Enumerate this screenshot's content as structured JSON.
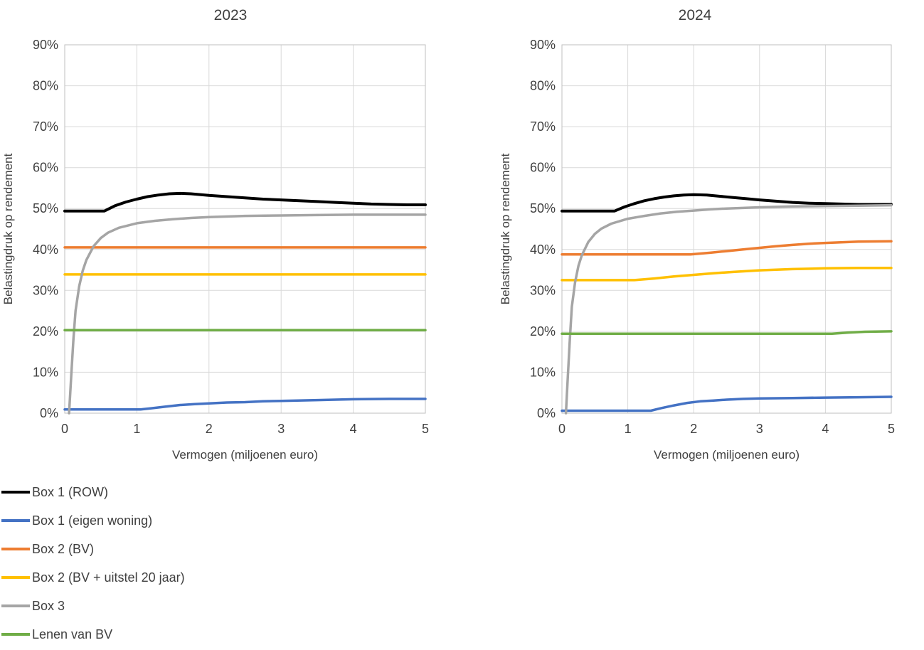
{
  "page": {
    "background": "#ffffff",
    "text_color": "#404040",
    "gridline_color": "#d9d9d9",
    "plot_border_color": "#bfbfbf"
  },
  "chart_data": [
    {
      "type": "line",
      "title": "2023",
      "xlabel": "Vermogen (miljoenen euro)",
      "ylabel": "Belastingdruk op rendement",
      "xlim": [
        0,
        5
      ],
      "ylim": [
        0,
        90
      ],
      "x_ticks": [
        "0",
        "1",
        "2",
        "3",
        "4",
        "5"
      ],
      "y_ticks": [
        "0%",
        "10%",
        "20%",
        "30%",
        "40%",
        "50%",
        "60%",
        "70%",
        "80%",
        "90%"
      ],
      "grid": true,
      "series": [
        {
          "name": "Box 1 (ROW)",
          "color": "#000000",
          "x": [
            0,
            0.55,
            0.7,
            0.85,
            1.0,
            1.15,
            1.3,
            1.45,
            1.6,
            1.75,
            2.0,
            2.25,
            2.5,
            2.75,
            3.0,
            3.25,
            3.5,
            3.75,
            4.0,
            4.25,
            4.5,
            4.75,
            5.0
          ],
          "y": [
            49.4,
            49.4,
            50.7,
            51.6,
            52.3,
            52.9,
            53.3,
            53.6,
            53.7,
            53.6,
            53.2,
            52.9,
            52.6,
            52.3,
            52.1,
            51.9,
            51.7,
            51.5,
            51.3,
            51.1,
            51.0,
            50.9,
            50.9
          ]
        },
        {
          "name": "Box 1 (eigen woning)",
          "color": "#4472C4",
          "x": [
            0,
            1.05,
            1.2,
            1.4,
            1.6,
            1.8,
            2.0,
            2.25,
            2.5,
            2.75,
            3.0,
            3.5,
            4.0,
            4.5,
            5.0
          ],
          "y": [
            0.9,
            0.9,
            1.2,
            1.6,
            2.0,
            2.2,
            2.4,
            2.6,
            2.7,
            2.9,
            3.0,
            3.2,
            3.4,
            3.5,
            3.5
          ]
        },
        {
          "name": "Box 2 (BV)",
          "color": "#ED7D31",
          "x": [
            0,
            5
          ],
          "y": [
            40.5,
            40.5
          ]
        },
        {
          "name": "Box 2 (BV + uitstel 20 jaar)",
          "color": "#FFC000",
          "x": [
            0,
            5
          ],
          "y": [
            33.9,
            33.9
          ]
        },
        {
          "name": "Box 3",
          "color": "#A5A5A5",
          "x": [
            0.06,
            0.09,
            0.12,
            0.15,
            0.2,
            0.25,
            0.3,
            0.4,
            0.5,
            0.6,
            0.75,
            1.0,
            1.25,
            1.5,
            1.75,
            2.0,
            2.5,
            3.0,
            3.5,
            4.0,
            4.5,
            5.0
          ],
          "y": [
            0,
            9,
            18,
            25,
            31,
            34.8,
            37.4,
            40.8,
            42.8,
            44.1,
            45.3,
            46.4,
            47.0,
            47.4,
            47.7,
            47.9,
            48.2,
            48.3,
            48.4,
            48.5,
            48.5,
            48.5
          ]
        },
        {
          "name": "Lenen van BV",
          "color": "#70AD47",
          "x": [
            0,
            5
          ],
          "y": [
            20.3,
            20.3
          ]
        }
      ]
    },
    {
      "type": "line",
      "title": "2024",
      "xlabel": "Vermogen (miljoenen euro)",
      "ylabel": "Belastingdruk op rendement",
      "xlim": [
        0,
        5
      ],
      "ylim": [
        0,
        90
      ],
      "x_ticks": [
        "0",
        "1",
        "2",
        "3",
        "4",
        "5"
      ],
      "y_ticks": [
        "0%",
        "10%",
        "20%",
        "30%",
        "40%",
        "50%",
        "60%",
        "70%",
        "80%",
        "90%"
      ],
      "grid": true,
      "series": [
        {
          "name": "Box 1 (ROW)",
          "color": "#000000",
          "x": [
            0,
            0.8,
            0.95,
            1.1,
            1.25,
            1.4,
            1.55,
            1.7,
            1.85,
            2.0,
            2.2,
            2.4,
            2.6,
            2.8,
            3.0,
            3.25,
            3.5,
            3.75,
            4.0,
            4.25,
            4.5,
            5.0
          ],
          "y": [
            49.4,
            49.4,
            50.4,
            51.2,
            51.9,
            52.4,
            52.8,
            53.1,
            53.3,
            53.4,
            53.3,
            53.0,
            52.7,
            52.4,
            52.1,
            51.8,
            51.5,
            51.3,
            51.2,
            51.1,
            51.0,
            51.0
          ]
        },
        {
          "name": "Box 1 (eigen woning)",
          "color": "#4472C4",
          "x": [
            0,
            1.35,
            1.5,
            1.7,
            1.9,
            2.1,
            2.3,
            2.5,
            2.75,
            3.0,
            3.5,
            4.0,
            4.5,
            5.0
          ],
          "y": [
            0.6,
            0.6,
            1.2,
            1.9,
            2.5,
            2.9,
            3.1,
            3.3,
            3.5,
            3.6,
            3.7,
            3.8,
            3.9,
            4.0
          ]
        },
        {
          "name": "Box 2 (BV)",
          "color": "#ED7D31",
          "x": [
            0,
            1.95,
            2.25,
            2.5,
            2.75,
            3.0,
            3.25,
            3.5,
            3.75,
            4.0,
            4.5,
            5.0
          ],
          "y": [
            38.8,
            38.8,
            39.2,
            39.6,
            40.0,
            40.4,
            40.8,
            41.1,
            41.4,
            41.6,
            41.9,
            42.0
          ]
        },
        {
          "name": "Box 2 (BV + uitstel 20 jaar)",
          "color": "#FFC000",
          "x": [
            0,
            1.1,
            1.4,
            1.7,
            2.0,
            2.3,
            2.6,
            3.0,
            3.5,
            4.0,
            4.5,
            5.0
          ],
          "y": [
            32.5,
            32.5,
            32.9,
            33.4,
            33.8,
            34.2,
            34.5,
            34.9,
            35.2,
            35.4,
            35.5,
            35.5
          ]
        },
        {
          "name": "Box 3",
          "color": "#A5A5A5",
          "x": [
            0.06,
            0.09,
            0.12,
            0.15,
            0.2,
            0.25,
            0.3,
            0.4,
            0.5,
            0.6,
            0.75,
            1.0,
            1.25,
            1.5,
            1.75,
            2.0,
            2.25,
            2.5,
            3.0,
            3.5,
            4.0,
            4.5,
            5.0
          ],
          "y": [
            0,
            9,
            18,
            26,
            32,
            36,
            38.5,
            41.8,
            43.8,
            45.1,
            46.3,
            47.5,
            48.2,
            48.8,
            49.2,
            49.5,
            49.8,
            50.0,
            50.3,
            50.5,
            50.6,
            50.7,
            50.8
          ]
        },
        {
          "name": "Lenen van BV",
          "color": "#70AD47",
          "x": [
            0,
            4.1,
            4.35,
            4.6,
            5.0
          ],
          "y": [
            19.4,
            19.4,
            19.7,
            19.9,
            20.0
          ]
        }
      ]
    }
  ],
  "legend": {
    "position": "bottom-left",
    "entries": [
      {
        "label": "Box 1 (ROW)",
        "color": "#000000"
      },
      {
        "label": "Box 1 (eigen woning)",
        "color": "#4472C4"
      },
      {
        "label": "Box 2 (BV)",
        "color": "#ED7D31"
      },
      {
        "label": "Box 2 (BV + uitstel 20 jaar)",
        "color": "#FFC000"
      },
      {
        "label": "Box 3",
        "color": "#A5A5A5"
      },
      {
        "label": "Lenen van BV",
        "color": "#70AD47"
      }
    ]
  }
}
